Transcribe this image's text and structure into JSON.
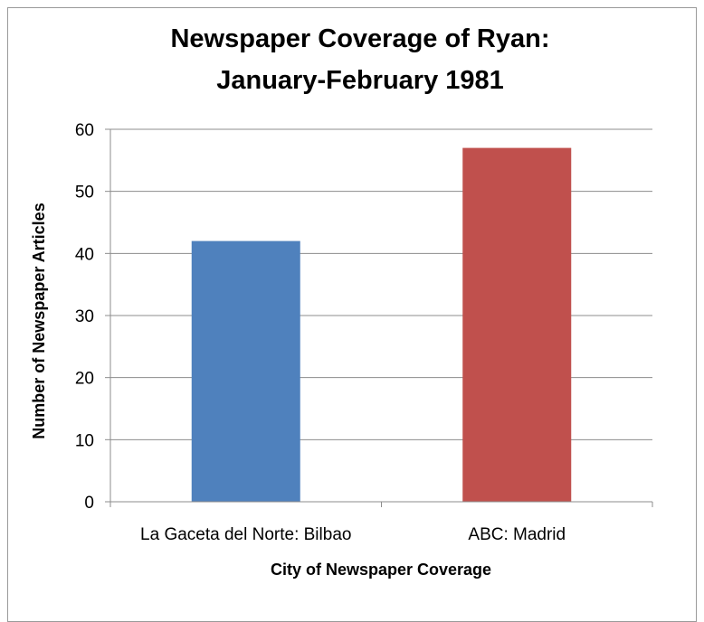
{
  "chart_data": {
    "type": "bar",
    "title": "Newspaper Coverage of Ryan:",
    "subtitle": "January-February 1981",
    "xlabel": "City of Newspaper Coverage",
    "ylabel": "Number of Newspaper Articles",
    "categories": [
      "La Gaceta del Norte: Bilbao",
      "ABC: Madrid"
    ],
    "values": [
      42,
      57
    ],
    "ylim": [
      0,
      60
    ],
    "yticks": [
      "0",
      "10",
      "20",
      "30",
      "40",
      "50",
      "60"
    ],
    "grid": true,
    "legend": "none",
    "colors": [
      "#4f81bd",
      "#c0504d"
    ]
  }
}
